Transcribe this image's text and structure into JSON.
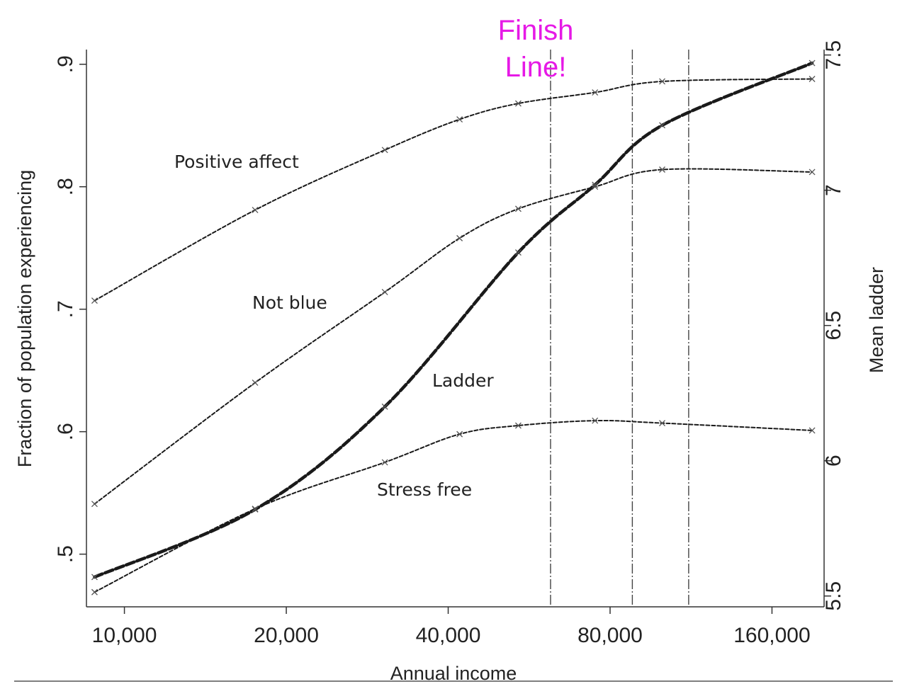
{
  "chart_data": {
    "type": "line",
    "title": "",
    "xlabel": "Annual income",
    "ylabel": "Fraction of population experiencing",
    "ylabel_right": "Mean ladder",
    "x_scale": "log",
    "x_ticks": [
      10000,
      20000,
      40000,
      80000,
      160000
    ],
    "x_tick_labels": [
      "10,000",
      "20,000",
      "40,000",
      "80,000",
      "160,000"
    ],
    "xlim": [
      8500,
      200000
    ],
    "y_ticks": [
      0.5,
      0.6,
      0.7,
      0.8,
      0.9
    ],
    "y_tick_labels": [
      ".5",
      ".6",
      ".7",
      ".8",
      ".9"
    ],
    "ylim": [
      0.457,
      0.912
    ],
    "y2_ticks": [
      5.5,
      6,
      6.5,
      7,
      7.5
    ],
    "y2_tick_labels": [
      "5.5",
      "6",
      "6.5",
      "7",
      "7.5"
    ],
    "y2lim": [
      5.46,
      7.52
    ],
    "grid": false,
    "vertical_lines": [
      62000,
      88000,
      112000
    ],
    "series": [
      {
        "name": "Positive affect",
        "axis": "left",
        "x": [
          8800,
          17500,
          30500,
          42000,
          54000,
          75000,
          100000,
          190000
        ],
        "y": [
          0.707,
          0.781,
          0.83,
          0.855,
          0.868,
          0.877,
          0.886,
          0.888
        ]
      },
      {
        "name": "Not blue",
        "axis": "left",
        "x": [
          8800,
          17500,
          30500,
          42000,
          54000,
          75000,
          100000,
          190000
        ],
        "y": [
          0.541,
          0.64,
          0.714,
          0.758,
          0.782,
          0.8,
          0.814,
          0.812
        ]
      },
      {
        "name": "Stress free",
        "axis": "left",
        "x": [
          8800,
          17500,
          30500,
          42000,
          54000,
          75000,
          100000,
          190000
        ],
        "y": [
          0.469,
          0.537,
          0.575,
          0.598,
          0.605,
          0.609,
          0.607,
          0.601
        ]
      },
      {
        "name": "Ladder",
        "axis": "right",
        "x": [
          8800,
          17500,
          30500,
          54000,
          75000,
          100000,
          190000
        ],
        "y": [
          5.57,
          5.82,
          6.2,
          6.77,
          7.02,
          7.24,
          7.47
        ]
      }
    ],
    "annotations": [
      {
        "text": "Finish",
        "x": 64000
      },
      {
        "text": "Line!",
        "x": 64000
      }
    ]
  }
}
